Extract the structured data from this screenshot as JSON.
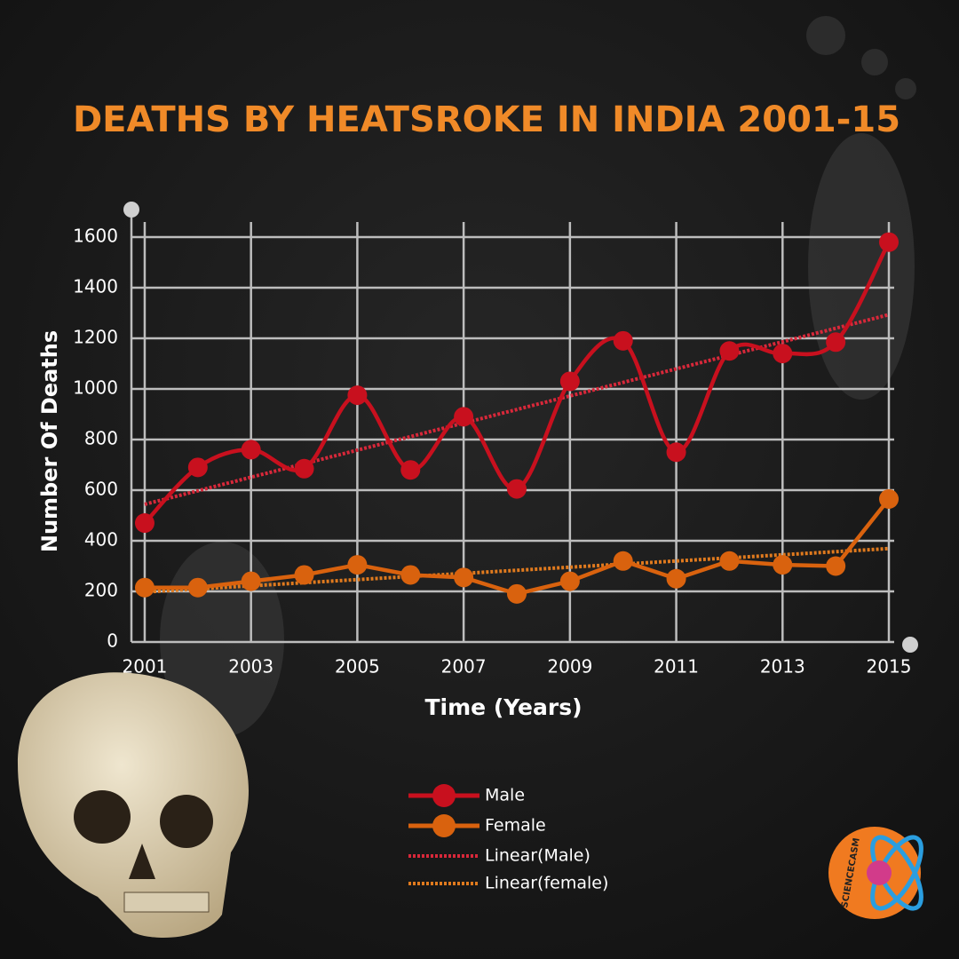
{
  "chart_data": {
    "type": "line",
    "title": "DEATHS BY HEATSROKE IN INDIA 2001-15",
    "x_label": "Time (Years)",
    "y_label": "Number Of Deaths",
    "x": [
      2001,
      2002,
      2003,
      2004,
      2005,
      2006,
      2007,
      2008,
      2009,
      2010,
      2011,
      2012,
      2013,
      2014,
      2015
    ],
    "xlim": [
      2000.75,
      2015.1
    ],
    "xticks": [
      2001,
      2003,
      2005,
      2007,
      2009,
      2011,
      2013,
      2015
    ],
    "ylim": [
      0,
      1600
    ],
    "yticks": [
      0,
      200,
      400,
      600,
      800,
      1000,
      1200,
      1400,
      1600
    ],
    "grid": true,
    "series": [
      {
        "name": "Male",
        "color": "#c8101e",
        "smooth": true,
        "values": [
          470,
          690,
          760,
          685,
          975,
          680,
          890,
          605,
          1030,
          1190,
          750,
          1150,
          1140,
          1185,
          1580
        ],
        "trendline": {
          "name": "Linear(Male)",
          "color": "#d8283a"
        }
      },
      {
        "name": "Female",
        "color": "#d9620e",
        "smooth": false,
        "values": [
          215,
          215,
          240,
          265,
          305,
          265,
          255,
          190,
          240,
          320,
          250,
          320,
          305,
          300,
          565
        ],
        "trendline": {
          "name": "Linear(female)",
          "color": "#e07a1e"
        }
      }
    ],
    "logo": "SCIENCECASM"
  }
}
